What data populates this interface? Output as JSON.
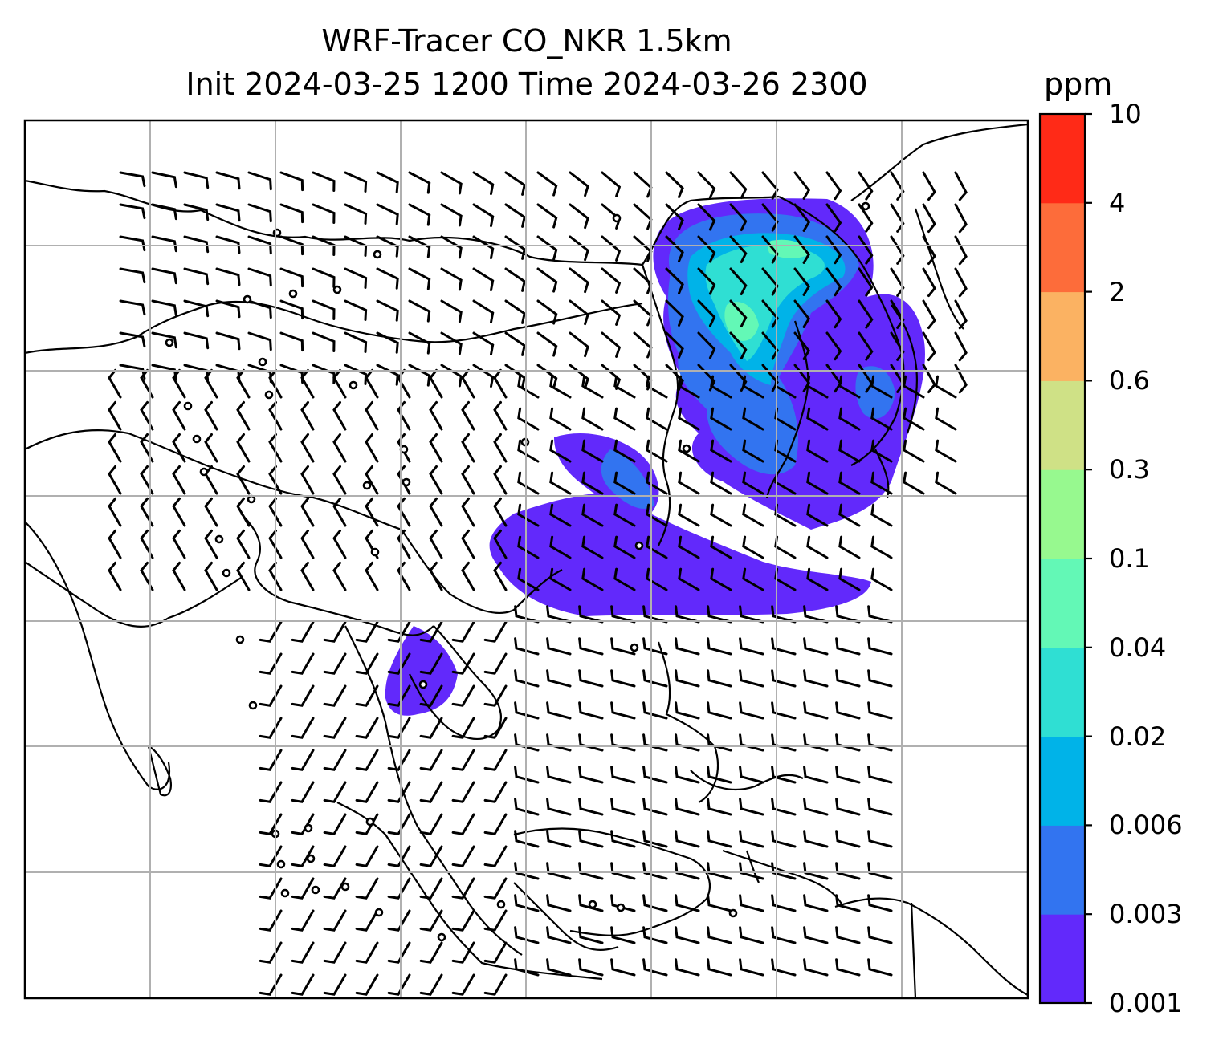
{
  "title": {
    "line1": "WRF-Tracer CO_NKR 1.5km",
    "line2": "Init 2024-03-25 1200 Time 2024-03-26 2300"
  },
  "colorbar": {
    "unit": "ppm",
    "ticks": [
      "0.001",
      "0.003",
      "0.006",
      "0.02",
      "0.04",
      "0.1",
      "0.3",
      "0.6",
      "2",
      "4",
      "10"
    ],
    "colors": [
      "#6229fb",
      "#3274f0",
      "#00b3e8",
      "#2fdfd3",
      "#63f8b6",
      "#97f98f",
      "#cfe186",
      "#fbb262",
      "#fd6c3a",
      "#ff2a17"
    ]
  },
  "map": {
    "plume_colors": {
      "low": "#6229fb",
      "mid": "#3274f0",
      "high": "#00b3e8",
      "peak": "#2fdfd3",
      "core": "#63f8b6"
    },
    "gridline_color": "#b0b0b0",
    "coastline_color": "#000000"
  }
}
